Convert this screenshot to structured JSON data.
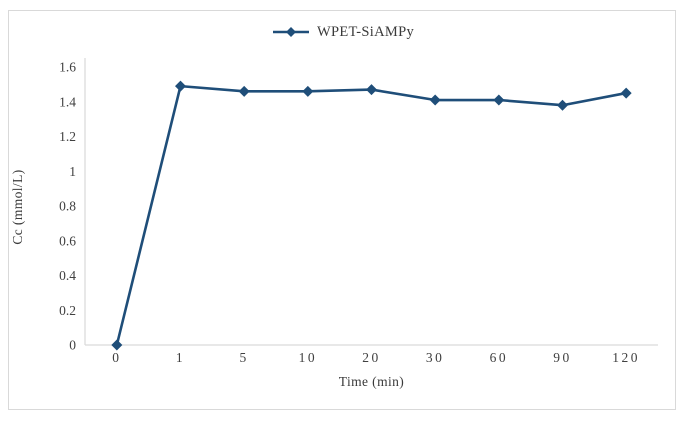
{
  "chart_data": {
    "type": "line",
    "title": "",
    "xlabel": "Time (min)",
    "ylabel": "Cc (mmol/L)",
    "categories": [
      "0",
      "1",
      "5",
      "10",
      "20",
      "30",
      "60",
      "90",
      "120"
    ],
    "series": [
      {
        "name": "WPET-SiAMPy",
        "values": [
          0,
          1.49,
          1.46,
          1.46,
          1.47,
          1.41,
          1.41,
          1.38,
          1.45
        ]
      }
    ],
    "ylim": [
      0,
      1.6
    ],
    "yticks": [
      "0",
      "0.2",
      "0.4",
      "0.6",
      "0.8",
      "1",
      "1.2",
      "1.4",
      "1.6"
    ],
    "grid": false,
    "legend_position": "top-center",
    "marker": "diamond",
    "colors": {
      "series": "#1F4E79",
      "axis_line": "#D9D9D9",
      "tick_text": "#404040",
      "frame_border": "#D9D9D9",
      "background": "#FFFFFF"
    }
  }
}
